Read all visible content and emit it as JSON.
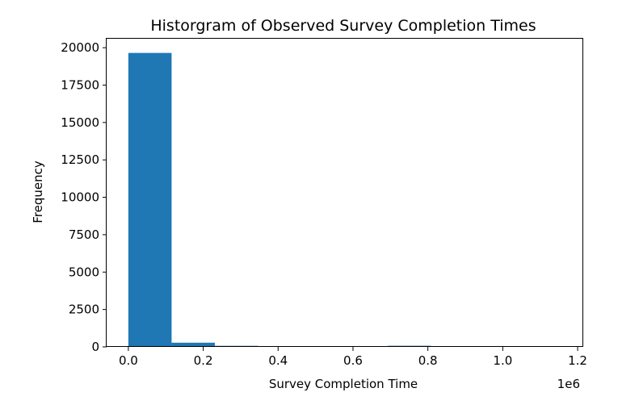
{
  "chart_data": {
    "type": "bar",
    "title": "Historgram of Observed Survey Completion Times",
    "xlabel": "Survey Completion Time",
    "ylabel": "Frequency",
    "x_offset_label": "1e6",
    "xlim": [
      -0.058,
      1.215
    ],
    "ylim": [
      0,
      20600
    ],
    "x_ticks": [
      {
        "value": 0.0,
        "label": "0.0"
      },
      {
        "value": 0.2,
        "label": "0.2"
      },
      {
        "value": 0.4,
        "label": "0.4"
      },
      {
        "value": 0.6,
        "label": "0.6"
      },
      {
        "value": 0.8,
        "label": "0.8"
      },
      {
        "value": 1.0,
        "label": "1.0"
      },
      {
        "value": 1.2,
        "label": "1.2"
      }
    ],
    "y_ticks": [
      {
        "value": 0,
        "label": "0"
      },
      {
        "value": 2500,
        "label": "2500"
      },
      {
        "value": 5000,
        "label": "5000"
      },
      {
        "value": 7500,
        "label": "7500"
      },
      {
        "value": 10000,
        "label": "10000"
      },
      {
        "value": 12500,
        "label": "12500"
      },
      {
        "value": 15000,
        "label": "15000"
      },
      {
        "value": 17500,
        "label": "17500"
      },
      {
        "value": 20000,
        "label": "20000"
      }
    ],
    "bins": [
      {
        "start": 0.0,
        "end": 0.1155,
        "count": 19650
      },
      {
        "start": 0.1155,
        "end": 0.231,
        "count": 280
      },
      {
        "start": 0.231,
        "end": 0.3465,
        "count": 70
      },
      {
        "start": 0.3465,
        "end": 0.462,
        "count": 8
      },
      {
        "start": 0.462,
        "end": 0.5775,
        "count": 3
      },
      {
        "start": 0.5775,
        "end": 0.693,
        "count": 3
      },
      {
        "start": 0.693,
        "end": 0.8085,
        "count": 75
      },
      {
        "start": 0.8085,
        "end": 0.924,
        "count": 3
      },
      {
        "start": 0.924,
        "end": 1.0395,
        "count": 2
      },
      {
        "start": 1.0395,
        "end": 1.155,
        "count": 2
      }
    ],
    "bar_color": "#1f77b4",
    "grid": false,
    "legend": "none"
  }
}
